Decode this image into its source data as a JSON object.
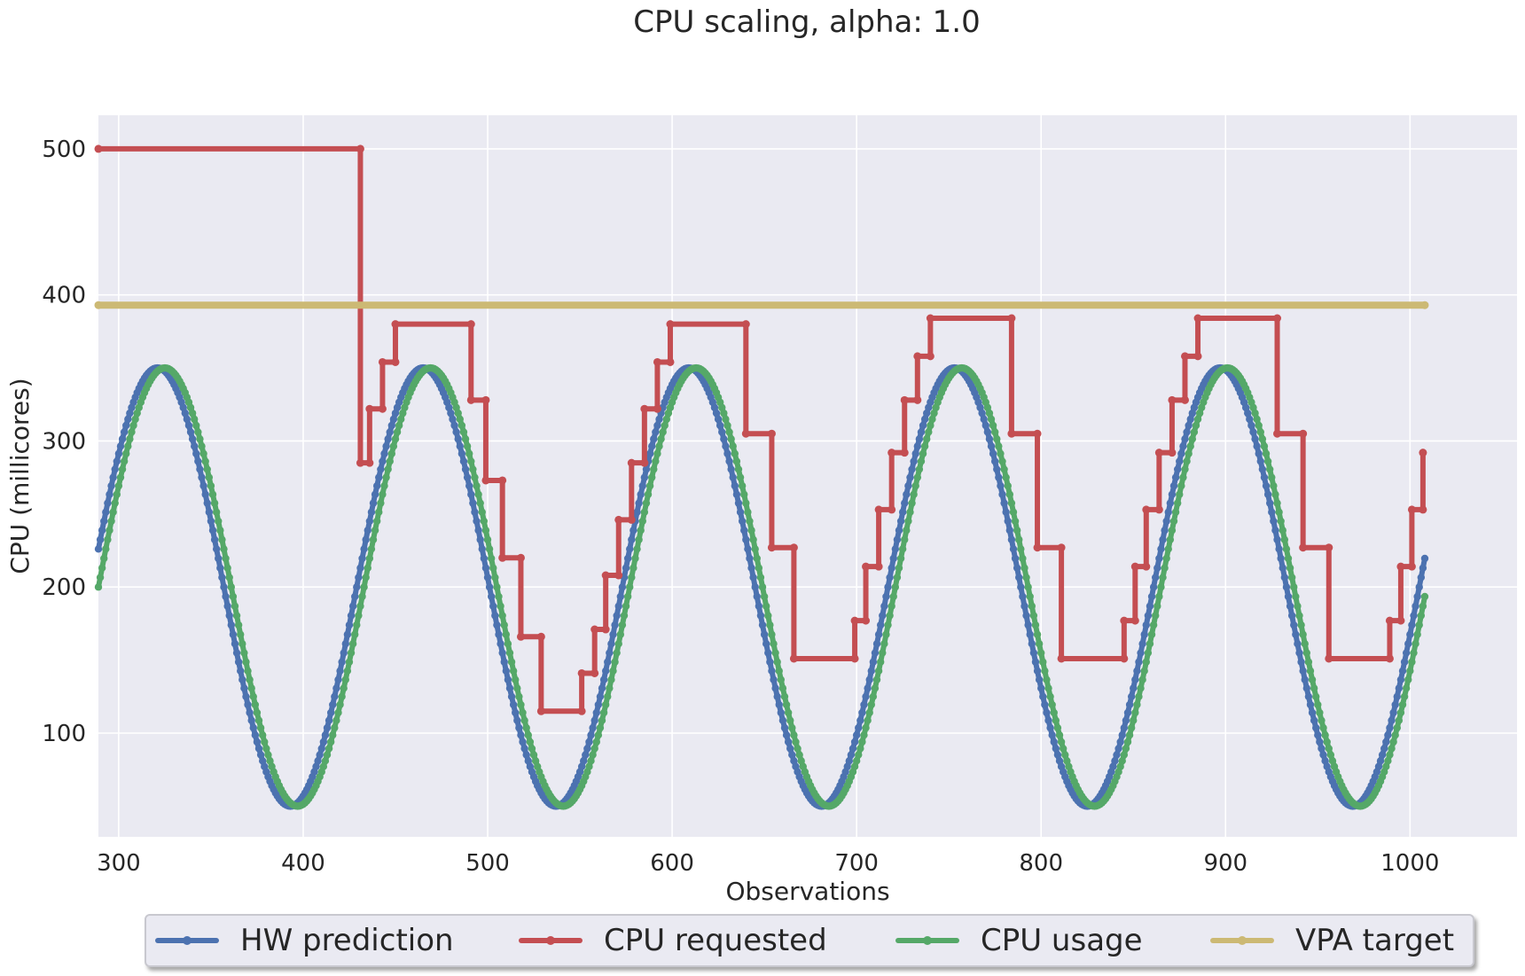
{
  "chart_data": {
    "type": "line",
    "title": "CPU scaling, alpha: 1.0",
    "xlabel": "Observations",
    "ylabel": "CPU (millicores)",
    "xlim": [
      289,
      1058
    ],
    "ylim": [
      29,
      523
    ],
    "xticks": [
      300,
      400,
      500,
      600,
      700,
      800,
      900,
      1000
    ],
    "yticks": [
      100,
      200,
      300,
      400,
      500
    ],
    "grid": true,
    "legend_position": "bottom-center",
    "series": [
      {
        "name": "HW prediction",
        "color": "#4c72b0",
        "generator": "sine",
        "x_start": 289,
        "x_end": 1008,
        "center": 200,
        "amplitude": 150,
        "period": 144,
        "peak_x": 321
      },
      {
        "name": "CPU requested",
        "color": "#c44e52",
        "steps": [
          [
            289,
            500
          ],
          [
            431,
            500
          ],
          [
            431,
            285
          ],
          [
            436,
            285
          ],
          [
            436,
            322
          ],
          [
            443,
            322
          ],
          [
            443,
            354
          ],
          [
            450,
            354
          ],
          [
            450,
            380
          ],
          [
            491,
            380
          ],
          [
            491,
            328
          ],
          [
            499,
            328
          ],
          [
            499,
            273
          ],
          [
            508,
            273
          ],
          [
            508,
            220
          ],
          [
            518,
            220
          ],
          [
            518,
            166
          ],
          [
            529,
            166
          ],
          [
            529,
            115
          ],
          [
            551,
            115
          ],
          [
            551,
            141
          ],
          [
            558,
            141
          ],
          [
            558,
            171
          ],
          [
            564,
            171
          ],
          [
            564,
            208
          ],
          [
            571,
            208
          ],
          [
            571,
            246
          ],
          [
            578,
            246
          ],
          [
            578,
            285
          ],
          [
            585,
            285
          ],
          [
            585,
            322
          ],
          [
            592,
            322
          ],
          [
            592,
            354
          ],
          [
            599,
            354
          ],
          [
            599,
            380
          ],
          [
            640,
            380
          ],
          [
            640,
            305
          ],
          [
            654,
            305
          ],
          [
            654,
            227
          ],
          [
            666,
            227
          ],
          [
            666,
            151
          ],
          [
            699,
            151
          ],
          [
            699,
            177
          ],
          [
            705,
            177
          ],
          [
            705,
            214
          ],
          [
            712,
            214
          ],
          [
            712,
            253
          ],
          [
            719,
            253
          ],
          [
            719,
            292
          ],
          [
            726,
            292
          ],
          [
            726,
            328
          ],
          [
            733,
            328
          ],
          [
            733,
            358
          ],
          [
            740,
            358
          ],
          [
            740,
            384
          ],
          [
            784,
            384
          ],
          [
            784,
            305
          ],
          [
            798,
            305
          ],
          [
            798,
            227
          ],
          [
            811,
            227
          ],
          [
            811,
            151
          ],
          [
            845,
            151
          ],
          [
            845,
            177
          ],
          [
            851,
            177
          ],
          [
            851,
            214
          ],
          [
            857,
            214
          ],
          [
            857,
            253
          ],
          [
            864,
            253
          ],
          [
            864,
            292
          ],
          [
            871,
            292
          ],
          [
            871,
            328
          ],
          [
            878,
            328
          ],
          [
            878,
            358
          ],
          [
            885,
            358
          ],
          [
            885,
            384
          ],
          [
            928,
            384
          ],
          [
            928,
            305
          ],
          [
            942,
            305
          ],
          [
            942,
            227
          ],
          [
            956,
            227
          ],
          [
            956,
            151
          ],
          [
            989,
            151
          ],
          [
            989,
            177
          ],
          [
            995,
            177
          ],
          [
            995,
            214
          ],
          [
            1001,
            214
          ],
          [
            1001,
            253
          ],
          [
            1007,
            253
          ],
          [
            1007,
            292
          ]
        ]
      },
      {
        "name": "CPU usage",
        "color": "#55a868",
        "generator": "sine",
        "x_start": 289,
        "x_end": 1008,
        "center": 200,
        "amplitude": 150,
        "period": 144,
        "peak_x": 325
      },
      {
        "name": "VPA target",
        "color": "#ccb974",
        "constant": 393,
        "x_start": 289,
        "x_end": 1008
      }
    ]
  }
}
